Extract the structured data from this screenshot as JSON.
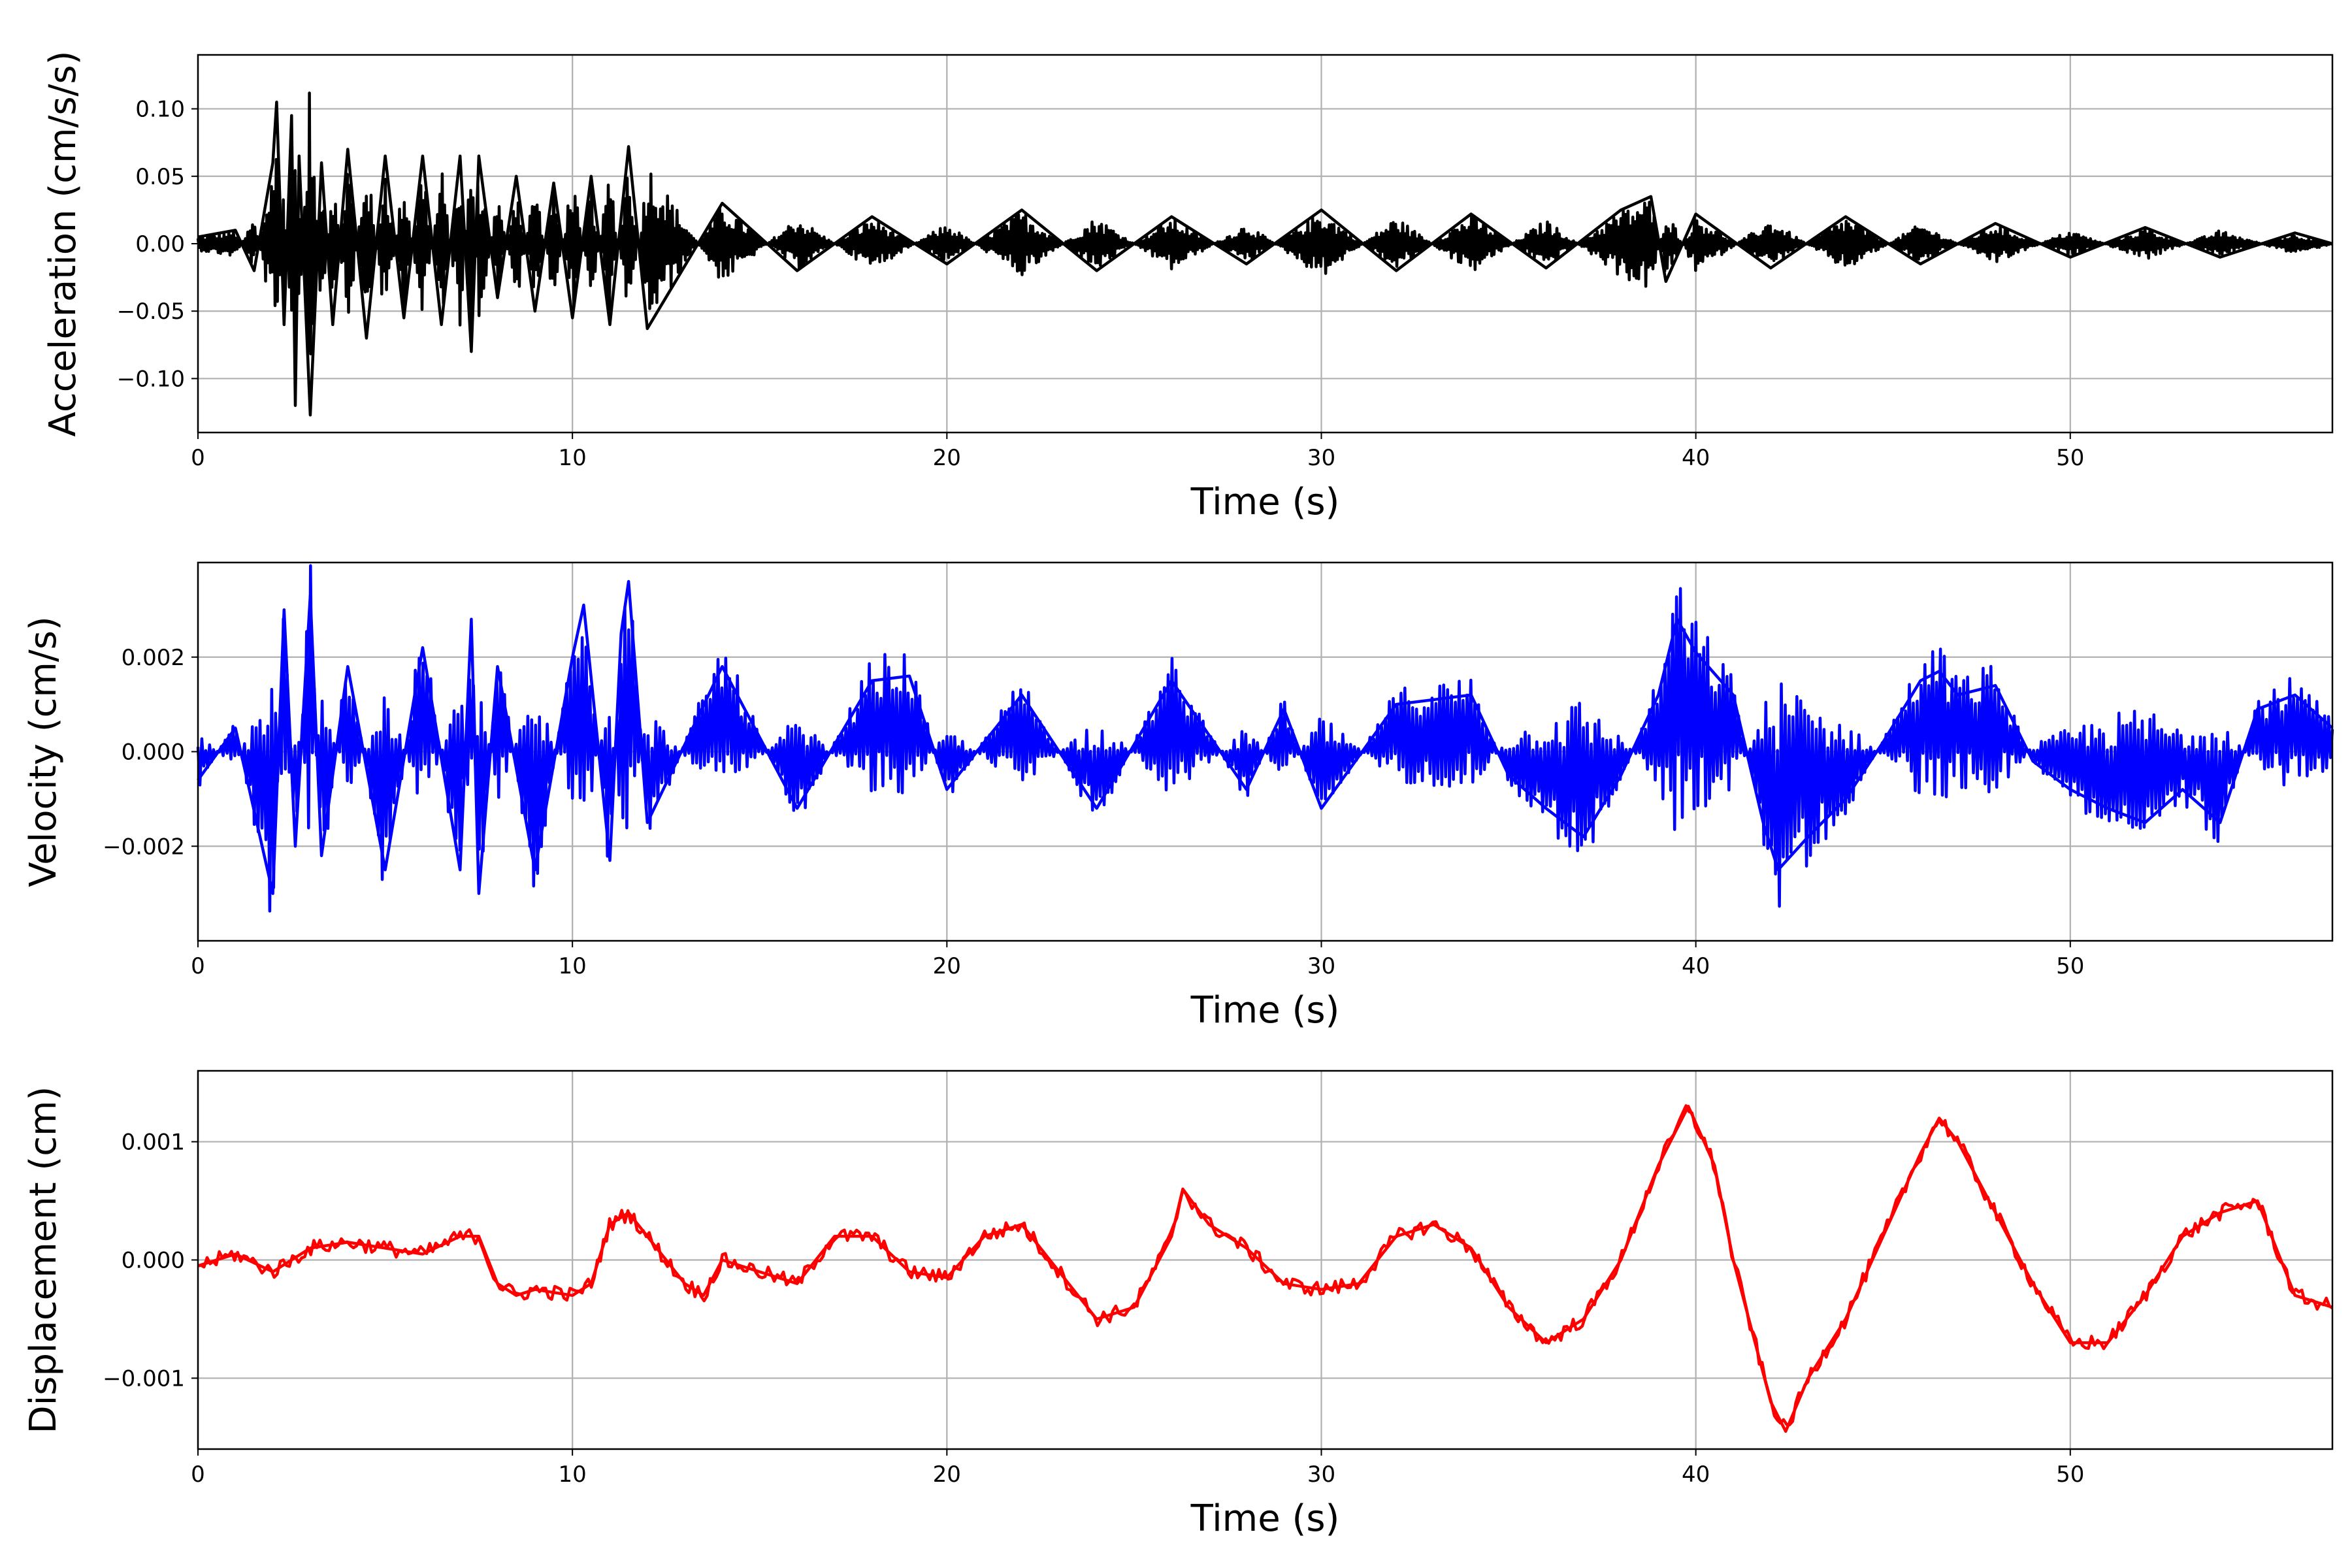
{
  "chart_data": [
    {
      "type": "line",
      "xlabel": "Time (s)",
      "ylabel": "Acceleration (cm/s/s)",
      "xlim": [
        0,
        57
      ],
      "ylim": [
        -0.14,
        0.14
      ],
      "xticks": [
        0,
        10,
        20,
        30,
        40,
        50
      ],
      "xtick_labels": [
        "0",
        "10",
        "20",
        "30",
        "40",
        "50"
      ],
      "yticks": [
        -0.1,
        -0.05,
        0.0,
        0.05,
        0.1
      ],
      "ytick_labels": [
        "−0.10",
        "−0.05",
        "0.00",
        "0.05",
        "0.10"
      ],
      "grid": true,
      "color": "#000000",
      "series": [
        {
          "x": [
            0,
            1,
            1.5,
            2.0,
            2.1,
            2.3,
            2.5,
            2.6,
            2.7,
            3.0,
            3.3,
            3.6,
            4.0,
            4.5,
            5.0,
            5.5,
            6.0,
            6.5,
            7.0,
            7.3,
            7.5,
            8.0,
            8.5,
            9.0,
            9.5,
            10.0,
            10.5,
            11.0,
            11.5,
            12.0,
            14,
            16,
            18,
            20,
            22,
            24,
            26,
            28,
            30,
            32,
            34,
            36,
            38,
            38.8,
            39.2,
            40,
            42,
            44,
            46,
            48,
            50,
            52,
            54,
            56,
            57
          ],
          "y": [
            0.005,
            0.01,
            -0.02,
            0.06,
            0.105,
            -0.06,
            0.095,
            -0.12,
            0.065,
            -0.127,
            0.06,
            -0.06,
            0.07,
            -0.07,
            0.065,
            -0.055,
            0.065,
            -0.06,
            0.065,
            -0.08,
            0.065,
            -0.04,
            0.05,
            -0.05,
            0.045,
            -0.055,
            0.05,
            -0.06,
            0.072,
            -0.063,
            0.03,
            -0.02,
            0.02,
            -0.015,
            0.025,
            -0.02,
            0.02,
            -0.015,
            0.025,
            -0.02,
            0.022,
            -0.018,
            0.025,
            0.035,
            -0.028,
            0.022,
            -0.018,
            0.02,
            -0.015,
            0.015,
            -0.01,
            0.012,
            -0.01,
            0.008,
            0.0
          ]
        }
      ]
    },
    {
      "type": "line",
      "xlabel": "Time (s)",
      "ylabel": "Velocity (cm/s)",
      "xlim": [
        0,
        57
      ],
      "ylim": [
        -0.004,
        0.004
      ],
      "xticks": [
        0,
        10,
        20,
        30,
        40,
        50
      ],
      "xtick_labels": [
        "0",
        "10",
        "20",
        "30",
        "40",
        "50"
      ],
      "yticks": [
        -0.002,
        0.0,
        0.002
      ],
      "ytick_labels": [
        "−0.002",
        "0.000",
        "0.002"
      ],
      "grid": true,
      "color": "#0000ff",
      "series": [
        {
          "x": [
            0,
            1,
            2.0,
            2.3,
            2.6,
            3.0,
            3.3,
            4.0,
            5.0,
            6.0,
            7.0,
            7.3,
            7.5,
            8.0,
            9.0,
            10.0,
            10.3,
            11.0,
            11.3,
            11.5,
            12.0,
            14,
            16,
            18,
            19,
            20,
            22,
            24,
            26,
            28,
            29,
            30,
            32,
            34,
            35,
            36,
            37,
            38,
            39,
            39.5,
            40,
            41,
            41.8,
            42.2,
            43,
            44,
            45,
            46,
            46.5,
            47,
            48,
            49,
            50,
            51,
            52,
            53,
            54,
            55,
            56,
            57
          ],
          "y": [
            -0.0006,
            0.0005,
            -0.003,
            0.003,
            -0.002,
            0.0033,
            -0.0022,
            0.0018,
            -0.0025,
            0.0022,
            -0.0025,
            0.0028,
            -0.003,
            0.0018,
            -0.0025,
            0.002,
            0.0031,
            -0.0023,
            0.0025,
            0.0036,
            -0.0015,
            0.0018,
            -0.0012,
            0.0015,
            0.0016,
            -0.0008,
            0.0012,
            -0.0012,
            0.0015,
            -0.0008,
            0.0009,
            -0.0012,
            0.001,
            0.0012,
            -0.0005,
            -0.0012,
            -0.0018,
            -0.0005,
            0.0012,
            0.0028,
            0.0021,
            0.0012,
            -0.0015,
            -0.0025,
            -0.0018,
            -0.001,
            0.0002,
            0.0015,
            0.0017,
            0.0012,
            0.0014,
            -0.0002,
            -0.0008,
            -0.0012,
            -0.0015,
            -0.0008,
            -0.0015,
            0.0009,
            0.0012,
            0.0005
          ]
        }
      ]
    },
    {
      "type": "line",
      "xlabel": "Time (s)",
      "ylabel": "Displacement (cm)",
      "xlim": [
        0,
        57
      ],
      "ylim": [
        -0.0016,
        0.0016
      ],
      "xticks": [
        0,
        10,
        20,
        30,
        40,
        50
      ],
      "xtick_labels": [
        "0",
        "10",
        "20",
        "30",
        "40",
        "50"
      ],
      "yticks": [
        -0.001,
        0.0,
        0.001
      ],
      "ytick_labels": [
        "−0.001",
        "0.000",
        "0.001"
      ],
      "grid": true,
      "color": "#ff0000",
      "series": [
        {
          "x": [
            0,
            1,
            2,
            3,
            4,
            5,
            6,
            7,
            7.5,
            8.0,
            8.5,
            9,
            10,
            10.5,
            11,
            11.5,
            12,
            13,
            13.5,
            14,
            15,
            16,
            17,
            18,
            19,
            20,
            21,
            22,
            23,
            24,
            25,
            26,
            26.3,
            27,
            28,
            29,
            30,
            31,
            32,
            33,
            34,
            35,
            36,
            37,
            38,
            39,
            39.8,
            40.5,
            41,
            42,
            42.4,
            43,
            44,
            45,
            46,
            46.5,
            47,
            48,
            49,
            50,
            51,
            52,
            53,
            54,
            55,
            56,
            57
          ],
          "y": [
            -5e-05,
            5e-05,
            -0.0001,
            0.0001,
            0.00015,
            0.0001,
            5e-05,
            0.0002,
            0.0002,
            -0.0002,
            -0.0003,
            -0.00025,
            -0.0003,
            -0.0002,
            0.0003,
            0.0004,
            0.0002,
            -0.0002,
            -0.0003,
            0.0,
            -0.0001,
            -0.0002,
            0.0002,
            0.0002,
            -0.0001,
            -0.00015,
            0.0002,
            0.0003,
            -0.0001,
            -0.0005,
            -0.0004,
            0.0002,
            0.0006,
            0.0003,
            0.0001,
            -0.0002,
            -0.00025,
            -0.0002,
            0.0002,
            0.0003,
            0.0001,
            -0.0004,
            -0.0007,
            -0.0005,
            0.0,
            0.0008,
            0.0013,
            0.0008,
            0.0,
            -0.0012,
            -0.00145,
            -0.001,
            -0.0005,
            0.0002,
            0.0009,
            0.0012,
            0.001,
            0.0004,
            -0.0002,
            -0.0007,
            -0.0007,
            -0.0003,
            0.0002,
            0.0004,
            0.0005,
            -0.0003,
            -0.0004
          ]
        }
      ]
    }
  ]
}
